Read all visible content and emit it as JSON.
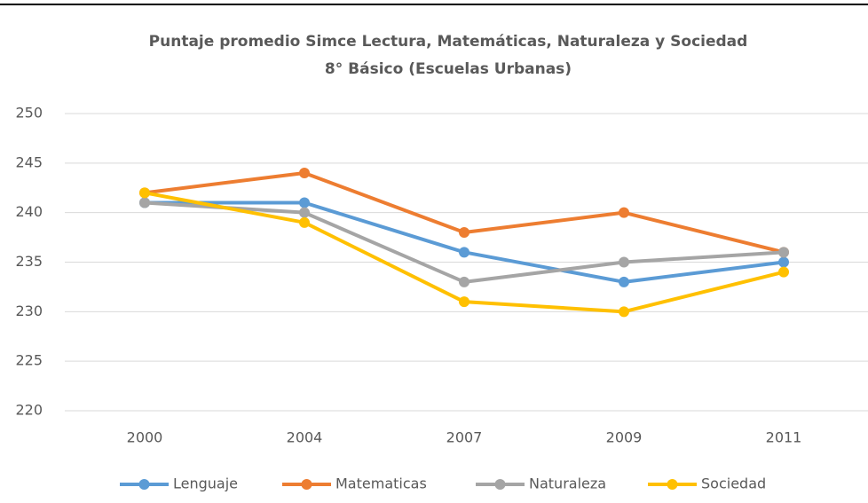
{
  "chart_data": {
    "type": "line",
    "title": "Puntaje promedio Simce Lectura, Matemáticas, Naturaleza y Sociedad",
    "subtitle": "8° Básico (Escuelas Urbanas)",
    "categories": [
      "2000",
      "2004",
      "2007",
      "2009",
      "2011"
    ],
    "series": [
      {
        "name": "Lenguaje",
        "color": "#5b9bd5",
        "values": [
          241,
          241,
          236,
          233,
          235
        ]
      },
      {
        "name": "Matematicas",
        "color": "#ed7d31",
        "values": [
          242,
          244,
          238,
          240,
          236
        ]
      },
      {
        "name": "Naturaleza",
        "color": "#a5a5a5",
        "values": [
          241,
          240,
          233,
          235,
          236
        ]
      },
      {
        "name": "Sociedad",
        "color": "#ffc000",
        "values": [
          242,
          239,
          231,
          230,
          234
        ]
      }
    ],
    "ylim": [
      220,
      250
    ],
    "yticks": [
      220,
      225,
      230,
      235,
      240,
      245,
      250
    ],
    "grid": true,
    "legend": "bottom"
  }
}
